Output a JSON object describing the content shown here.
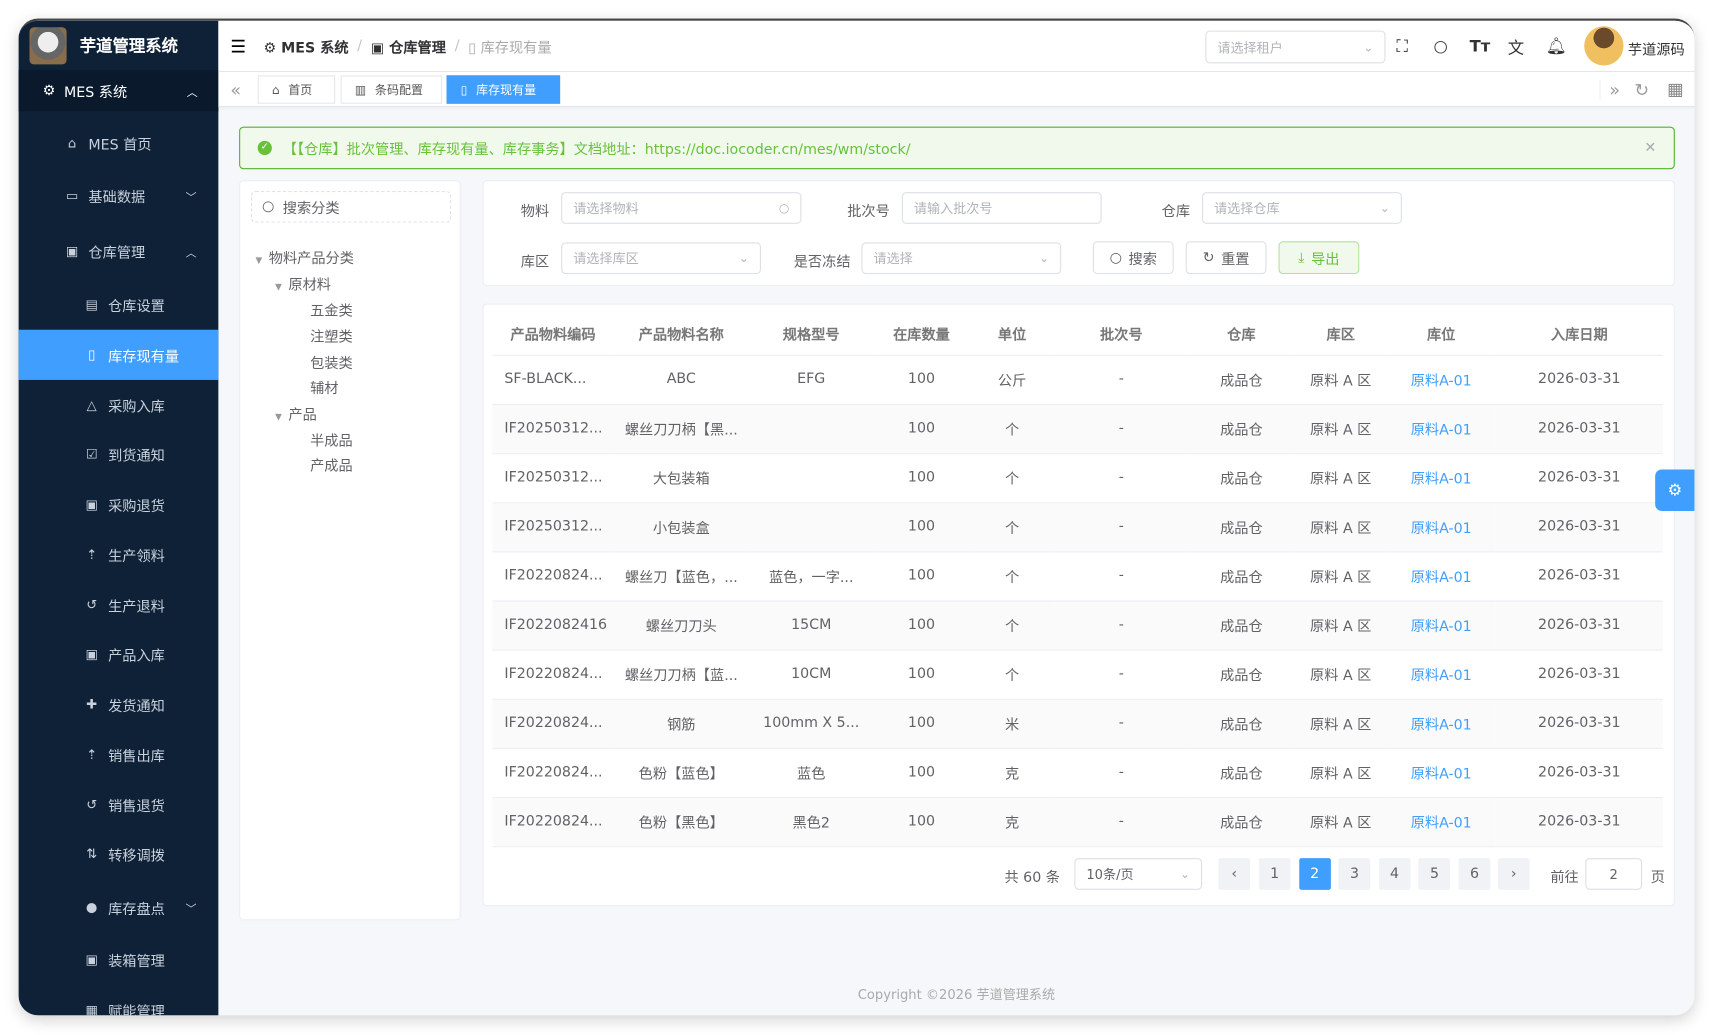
{
  "app": {
    "title": "芋道管理系统",
    "user": "芋道源码",
    "copyright": "Copyright ©2026 芋道管理系统"
  },
  "colors": {
    "accent": "#409eff",
    "sidebar": "#0f2137",
    "success": "#67c23a"
  },
  "sidebar": {
    "root": "MES 系统",
    "items": [
      {
        "label": "MES 首页",
        "icon": "home-icon"
      },
      {
        "label": "基础数据",
        "icon": "presentation-icon"
      },
      {
        "label": "仓库管理",
        "icon": "box-icon"
      },
      {
        "label": "仓库设置",
        "icon": "building-icon"
      },
      {
        "label": "库存现有量",
        "icon": "document-icon",
        "active": true
      },
      {
        "label": "采购入库",
        "icon": "bag-icon"
      },
      {
        "label": "到货通知",
        "icon": "file-check-icon"
      },
      {
        "label": "采购退货",
        "icon": "box-icon"
      },
      {
        "label": "生产领料",
        "icon": "bag-up-icon"
      },
      {
        "label": "生产退料",
        "icon": "undo-icon"
      },
      {
        "label": "产品入库",
        "icon": "box-icon"
      },
      {
        "label": "发货通知",
        "icon": "clipboard-plus-icon"
      },
      {
        "label": "销售出库",
        "icon": "bag-up-icon"
      },
      {
        "label": "销售退货",
        "icon": "undo-icon"
      },
      {
        "label": "转移调拨",
        "icon": "transfer-icon"
      },
      {
        "label": "库存盘点",
        "icon": "check-circle-icon"
      },
      {
        "label": "装箱管理",
        "icon": "box-icon"
      },
      {
        "label": "赋能管理",
        "icon": "qrcode-icon"
      }
    ]
  },
  "breadcrumb": [
    "MES 系统",
    "仓库管理",
    "库存现有量"
  ],
  "header": {
    "tenant_placeholder": "请选择租户"
  },
  "tabs": [
    "首页",
    "条码配置",
    "库存现有量"
  ],
  "alert": {
    "text": "【【仓库】批次管理、库存现有量、库存事务】文档地址：https://doc.iocoder.cn/mes/wm/stock/"
  },
  "tree": {
    "search_placeholder": "搜索分类",
    "nodes": [
      "物料产品分类",
      "原材料",
      "五金类",
      "注塑类",
      "包装类",
      "辅材",
      "产品",
      "半成品",
      "产成品"
    ]
  },
  "filters": {
    "material": {
      "label": "物料",
      "placeholder": "请选择物料"
    },
    "batch": {
      "label": "批次号",
      "placeholder": "请输入批次号"
    },
    "warehouse": {
      "label": "仓库",
      "placeholder": "请选择仓库"
    },
    "area": {
      "label": "库区",
      "placeholder": "请选择库区"
    },
    "frozen": {
      "label": "是否冻结",
      "placeholder": "请选择"
    },
    "search": "搜索",
    "reset": "重置",
    "export": "导出"
  },
  "table": {
    "columns": [
      "产品物料编码",
      "产品物料名称",
      "规格型号",
      "在库数量",
      "单位",
      "批次号",
      "仓库",
      "库区",
      "库位",
      "入库日期"
    ],
    "rows": [
      [
        "SF-BLACK...",
        "ABC",
        "EFG",
        "100",
        "公斤",
        "-",
        "成品仓",
        "原料 A 区",
        "原料A-01",
        "2026-03-31"
      ],
      [
        "IF20250312...",
        "螺丝刀刀柄【黑...",
        "",
        "100",
        "个",
        "-",
        "成品仓",
        "原料 A 区",
        "原料A-01",
        "2026-03-31"
      ],
      [
        "IF20250312...",
        "大包装箱",
        "",
        "100",
        "个",
        "-",
        "成品仓",
        "原料 A 区",
        "原料A-01",
        "2026-03-31"
      ],
      [
        "IF20250312...",
        "小包装盒",
        "",
        "100",
        "个",
        "-",
        "成品仓",
        "原料 A 区",
        "原料A-01",
        "2026-03-31"
      ],
      [
        "IF20220824...",
        "螺丝刀【蓝色，...",
        "蓝色，一字...",
        "100",
        "个",
        "-",
        "成品仓",
        "原料 A 区",
        "原料A-01",
        "2026-03-31"
      ],
      [
        "IF2022082416",
        "螺丝刀刀头",
        "15CM",
        "100",
        "个",
        "-",
        "成品仓",
        "原料 A 区",
        "原料A-01",
        "2026-03-31"
      ],
      [
        "IF20220824...",
        "螺丝刀刀柄【蓝...",
        "10CM",
        "100",
        "个",
        "-",
        "成品仓",
        "原料 A 区",
        "原料A-01",
        "2026-03-31"
      ],
      [
        "IF20220824...",
        "钢筋",
        "100mm X 5...",
        "100",
        "米",
        "-",
        "成品仓",
        "原料 A 区",
        "原料A-01",
        "2026-03-31"
      ],
      [
        "IF20220824...",
        "色粉【蓝色】",
        "蓝色",
        "100",
        "克",
        "-",
        "成品仓",
        "原料 A 区",
        "原料A-01",
        "2026-03-31"
      ],
      [
        "IF20220824...",
        "色粉【黑色】",
        "黑色2",
        "100",
        "克",
        "-",
        "成品仓",
        "原料 A 区",
        "原料A-01",
        "2026-03-31"
      ]
    ]
  },
  "pagination": {
    "total": "共 60 条",
    "page_size": "10条/页",
    "pages": [
      "1",
      "2",
      "3",
      "4",
      "5",
      "6"
    ],
    "current": "2",
    "goto_label": "前往",
    "goto_value": "2",
    "page_suffix": "页"
  }
}
